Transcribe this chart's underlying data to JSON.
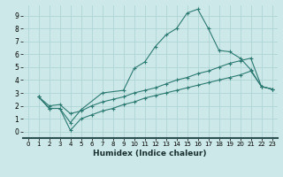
{
  "xlabel": "Humidex (Indice chaleur)",
  "xlim": [
    -0.5,
    23.5
  ],
  "ylim": [
    -0.5,
    9.8
  ],
  "xticks": [
    0,
    1,
    2,
    3,
    4,
    5,
    6,
    7,
    8,
    9,
    10,
    11,
    12,
    13,
    14,
    15,
    16,
    17,
    18,
    19,
    20,
    21,
    22,
    23
  ],
  "yticks": [
    0,
    1,
    2,
    3,
    4,
    5,
    6,
    7,
    8,
    9
  ],
  "background_color": "#cce8e8",
  "grid_color": "#aad0d0",
  "line_color": "#2d7a72",
  "line1_x": [
    1,
    2,
    3,
    4,
    5,
    7,
    9,
    10,
    11,
    12,
    13,
    14,
    15,
    16,
    17,
    18,
    19,
    20,
    21,
    22,
    23
  ],
  "line1_y": [
    2.7,
    1.8,
    1.8,
    0.7,
    1.7,
    3.0,
    3.2,
    4.9,
    5.4,
    6.6,
    7.5,
    8.0,
    9.2,
    9.5,
    8.0,
    6.3,
    6.2,
    5.7,
    4.8,
    3.5,
    3.3
  ],
  "line2_x": [
    1,
    2,
    3,
    4,
    5,
    6,
    7,
    8,
    9,
    10,
    11,
    12,
    13,
    14,
    15,
    16,
    17,
    18,
    19,
    20,
    21,
    22,
    23
  ],
  "line2_y": [
    2.7,
    2.0,
    2.1,
    1.4,
    1.6,
    2.0,
    2.3,
    2.5,
    2.7,
    3.0,
    3.2,
    3.4,
    3.7,
    4.0,
    4.2,
    4.5,
    4.7,
    5.0,
    5.3,
    5.5,
    5.7,
    3.5,
    3.3
  ],
  "line3_x": [
    1,
    2,
    3,
    4,
    5,
    6,
    7,
    8,
    9,
    10,
    11,
    12,
    13,
    14,
    15,
    16,
    17,
    18,
    19,
    20,
    21,
    22,
    23
  ],
  "line3_y": [
    2.7,
    1.8,
    1.8,
    0.1,
    1.0,
    1.3,
    1.6,
    1.8,
    2.1,
    2.3,
    2.6,
    2.8,
    3.0,
    3.2,
    3.4,
    3.6,
    3.8,
    4.0,
    4.2,
    4.4,
    4.7,
    3.5,
    3.3
  ]
}
